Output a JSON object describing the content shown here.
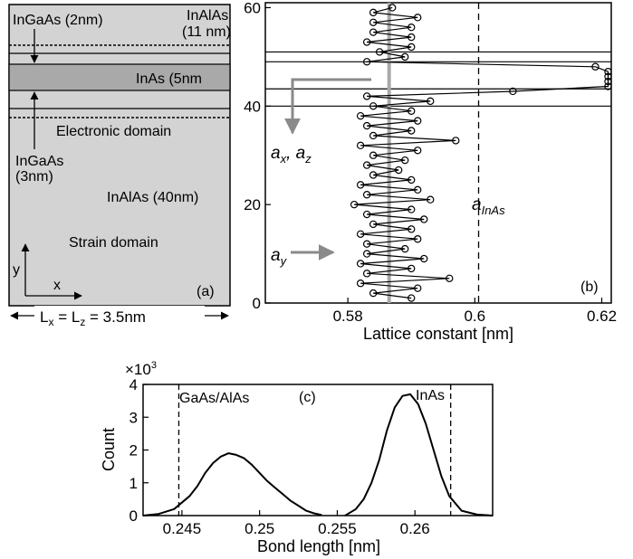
{
  "panel_a": {
    "labels": {
      "ingaas_top": "InGaAs (2nm)",
      "inalas_top_1": "InAlAs",
      "inalas_top_2": "(11 nm)",
      "inas": "InAs (5nm",
      "electronic_domain": "Electronic domain",
      "ingaas_bottom_1": "InGaAs",
      "ingaas_bottom_2": "(3nm)",
      "inalas_bottom": "InAlAs (40nm)",
      "strain_domain": "Strain domain",
      "axis_y": "y",
      "axis_x": "x",
      "panel_tag": "(a)",
      "dimension": "L",
      "dimension_sub_x": "x",
      "dimension_eq": " = L",
      "dimension_sub_z": "z",
      "dimension_value": " = 3.5nm"
    },
    "colors": {
      "background": "#d3d3d3",
      "inas_layer": "#a9a9a9"
    }
  },
  "chart_data": [
    {
      "type": "line",
      "panel": "(b)",
      "xlabel": "Lattice constant [nm]",
      "ylabel": "",
      "xlim": [
        0.567,
        0.6215
      ],
      "ylim": [
        0,
        61
      ],
      "xticks": [
        0.58,
        0.6,
        0.62
      ],
      "xtick_labels": [
        "0.58",
        "0.6",
        "0.62"
      ],
      "yticks": [
        0,
        20,
        40,
        60
      ],
      "ytick_labels": [
        "0",
        "20",
        "40",
        "60"
      ],
      "grid": false,
      "reference_lines": {
        "a_y_value": 0.5865,
        "a_InAs_value": 0.6006,
        "horizontal_lines": [
          40,
          43.5,
          49,
          51
        ]
      },
      "annotations": {
        "ax_az": "a",
        "ax_az_sub_1": "x",
        "ax_az_sep": ", a",
        "ax_az_sub_2": "z",
        "ay": "a",
        "ay_sub": "y",
        "a_inas": "a",
        "a_inas_sub": "InAs"
      },
      "series": [
        {
          "y": [
            1,
            2,
            3,
            4,
            5,
            6,
            7,
            8,
            9,
            10,
            11,
            12,
            13,
            14,
            15,
            16,
            17,
            18,
            19,
            20,
            21,
            22,
            23,
            24,
            25,
            26,
            27,
            28,
            29,
            30,
            31,
            32,
            33,
            34,
            35,
            36,
            37,
            38,
            39,
            40,
            41,
            42,
            43,
            44,
            45,
            46,
            47,
            48,
            49,
            50,
            51,
            52,
            53,
            54,
            55,
            56,
            57,
            58,
            59,
            60
          ],
          "x": [
            0.59,
            0.584,
            0.591,
            0.582,
            0.596,
            0.583,
            0.59,
            0.582,
            0.592,
            0.583,
            0.589,
            0.583,
            0.591,
            0.582,
            0.59,
            0.584,
            0.592,
            0.583,
            0.59,
            0.581,
            0.593,
            0.583,
            0.591,
            0.582,
            0.59,
            0.584,
            0.588,
            0.583,
            0.589,
            0.584,
            0.591,
            0.582,
            0.597,
            0.584,
            0.59,
            0.583,
            0.591,
            0.582,
            0.59,
            0.584,
            0.593,
            0.583,
            0.606,
            0.621,
            0.621,
            0.621,
            0.621,
            0.619,
            0.583,
            0.589,
            0.585,
            0.59,
            0.583,
            0.59,
            0.584,
            0.59,
            0.584,
            0.591,
            0.584,
            0.587
          ]
        }
      ]
    },
    {
      "type": "line",
      "panel": "(c)",
      "xlabel": "Bond length [nm]",
      "ylabel": "Count",
      "y_multiplier": "×10",
      "y_multiplier_exp": "3",
      "xlim": [
        0.2425,
        0.265
      ],
      "ylim": [
        0,
        4
      ],
      "xticks": [
        0.245,
        0.25,
        0.255,
        0.26
      ],
      "xtick_labels": [
        "0.245",
        "0.25",
        "0.255",
        "0.26"
      ],
      "yticks": [
        0,
        1,
        2,
        3,
        4
      ],
      "ytick_labels": [
        "0",
        "1",
        "2",
        "3",
        "4"
      ],
      "grid": false,
      "reference_lines": {
        "gaas_alas": 0.2448,
        "inas": 0.2623
      },
      "annotations": {
        "gaas_alas": "GaAs/AlAs",
        "inas": "InAs",
        "panel_tag": "(c)"
      },
      "series": [
        {
          "x": [
            0.2425,
            0.2435,
            0.2445,
            0.2455,
            0.246,
            0.2465,
            0.247,
            0.2475,
            0.248,
            0.2485,
            0.249,
            0.2495,
            0.25,
            0.2505,
            0.251,
            0.2515,
            0.252,
            0.2525,
            0.253,
            0.2535,
            0.254
          ],
          "y": [
            0.0,
            0.05,
            0.2,
            0.6,
            0.9,
            1.3,
            1.6,
            1.8,
            1.9,
            1.85,
            1.75,
            1.55,
            1.3,
            1.05,
            0.85,
            0.65,
            0.45,
            0.3,
            0.15,
            0.07,
            0.02
          ]
        },
        {
          "x": [
            0.2555,
            0.2562,
            0.2567,
            0.2572,
            0.2577,
            0.2582,
            0.2587,
            0.2592,
            0.2597,
            0.2602,
            0.2607,
            0.2612,
            0.2617,
            0.2622,
            0.263,
            0.264,
            0.265
          ],
          "y": [
            0.0,
            0.2,
            0.5,
            1.0,
            1.7,
            2.6,
            3.3,
            3.65,
            3.7,
            3.4,
            2.8,
            2.0,
            1.2,
            0.6,
            0.15,
            0.03,
            0.0
          ]
        }
      ]
    }
  ]
}
